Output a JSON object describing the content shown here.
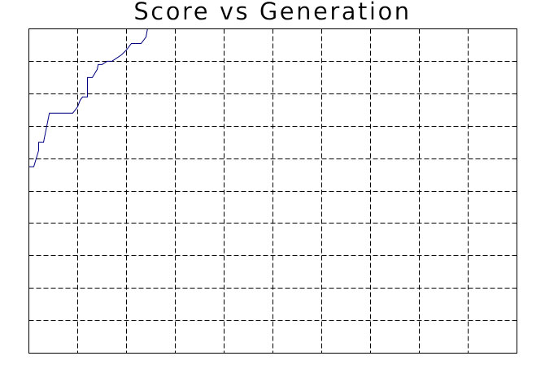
{
  "chart_data": {
    "type": "line",
    "title": "Score vs Generation",
    "xlabel": "",
    "ylabel": "",
    "xlim": [
      0,
      100
    ],
    "ylim": [
      0,
      100
    ],
    "x_divisions": 10,
    "y_divisions": 10,
    "grid": true,
    "grid_style": "dashed",
    "legend": "none",
    "series": [
      {
        "color": "#000080",
        "x": [
          0,
          1,
          2,
          2,
          3,
          4,
          4.2,
          5,
          6,
          7,
          8,
          9,
          10,
          10.5,
          11,
          12,
          12,
          13,
          14,
          14.2,
          15,
          16,
          17,
          18,
          19,
          20,
          21,
          22,
          23,
          24,
          24.3
        ],
        "y": [
          57.5,
          57.5,
          62.5,
          65,
          65,
          72.5,
          74,
          74,
          74,
          74,
          74,
          74,
          76,
          78,
          79,
          79,
          85,
          85,
          87.5,
          89,
          89,
          90,
          90,
          91,
          92,
          93.5,
          95.5,
          95.5,
          95.5,
          97.5,
          100
        ]
      }
    ]
  }
}
